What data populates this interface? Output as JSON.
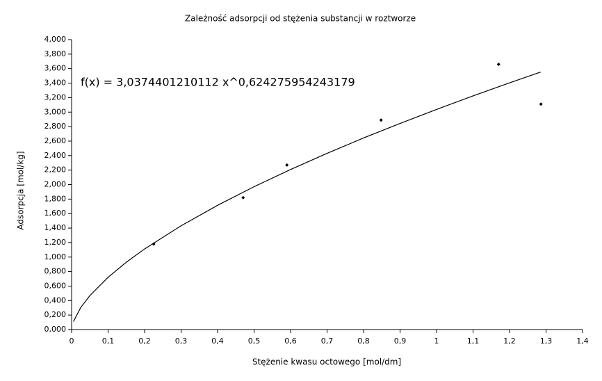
{
  "chart_data": {
    "type": "scatter",
    "title": "Zależność adsorpcji od stężenia substancji w roztworze",
    "x_label": "Stężenie kwasu octowego [mol/dm]",
    "y_label": "Adsorpcja [mol/kg]",
    "annotation": "f(x) = 3,0374401210112 x^0,624275954243179",
    "xlim": [
      0,
      1.4
    ],
    "ylim": [
      0,
      4
    ],
    "xticks": [
      0,
      {
        "value": 0.1,
        "label": "0,1"
      },
      {
        "value": 0.2,
        "label": "0,2"
      },
      {
        "value": 0.3,
        "label": "0,3"
      },
      {
        "value": 0.4,
        "label": "0,4"
      },
      {
        "value": 0.5,
        "label": "0,5"
      },
      {
        "value": 0.6,
        "label": "0,6"
      },
      {
        "value": 0.7,
        "label": "0,7"
      },
      {
        "value": 0.8,
        "label": "0,8"
      },
      {
        "value": 0.9,
        "label": "0,9"
      },
      1,
      {
        "value": 1.1,
        "label": "1,1"
      },
      {
        "value": 1.2,
        "label": "1,2"
      },
      {
        "value": 1.3,
        "label": "1,3"
      },
      {
        "value": 1.4,
        "label": "1,4"
      }
    ],
    "yticks": [
      {
        "value": 0,
        "label": "0,000"
      },
      {
        "value": 0.2,
        "label": "0,200"
      },
      {
        "value": 0.4,
        "label": "0,400"
      },
      {
        "value": 0.6,
        "label": "0,600"
      },
      {
        "value": 0.8,
        "label": "0,800"
      },
      {
        "value": 1,
        "label": "1,000"
      },
      {
        "value": 1.2,
        "label": "1,200"
      },
      {
        "value": 1.4,
        "label": "1,400"
      },
      {
        "value": 1.6,
        "label": "1,600"
      },
      {
        "value": 1.8,
        "label": "1,800"
      },
      {
        "value": 2,
        "label": "2,000"
      },
      {
        "value": 2.2,
        "label": "2,200"
      },
      {
        "value": 2.4,
        "label": "2,400"
      },
      {
        "value": 2.6,
        "label": "2,600"
      },
      {
        "value": 2.8,
        "label": "2,800"
      },
      {
        "value": 3,
        "label": "3,000"
      },
      {
        "value": 3.2,
        "label": "3,200"
      },
      {
        "value": 3.4,
        "label": "3,400"
      },
      {
        "value": 3.6,
        "label": "3,600"
      },
      {
        "value": 3.8,
        "label": "3,800"
      },
      {
        "value": 4,
        "label": "4,000"
      }
    ],
    "grid": false,
    "series": [
      {
        "mode": "markers",
        "color": "#000000",
        "x": [
          0.225,
          0.47,
          0.59,
          0.848,
          1.17,
          1.286
        ],
        "values": [
          1.18,
          1.82,
          2.27,
          2.89,
          3.66,
          3.11
        ]
      },
      {
        "mode": "line",
        "color": "#000000",
        "x": [
          0.005,
          0.025,
          0.05,
          0.1,
          0.15,
          0.2,
          0.3,
          0.4,
          0.5,
          0.6,
          0.7,
          0.8,
          0.9,
          1.0,
          1.1,
          1.2,
          1.285
        ],
        "values": [
          0.111,
          0.304,
          0.468,
          0.721,
          0.929,
          1.112,
          1.432,
          1.714,
          1.971,
          2.208,
          2.431,
          2.643,
          2.844,
          3.037,
          3.224,
          3.404,
          3.552
        ]
      }
    ]
  }
}
